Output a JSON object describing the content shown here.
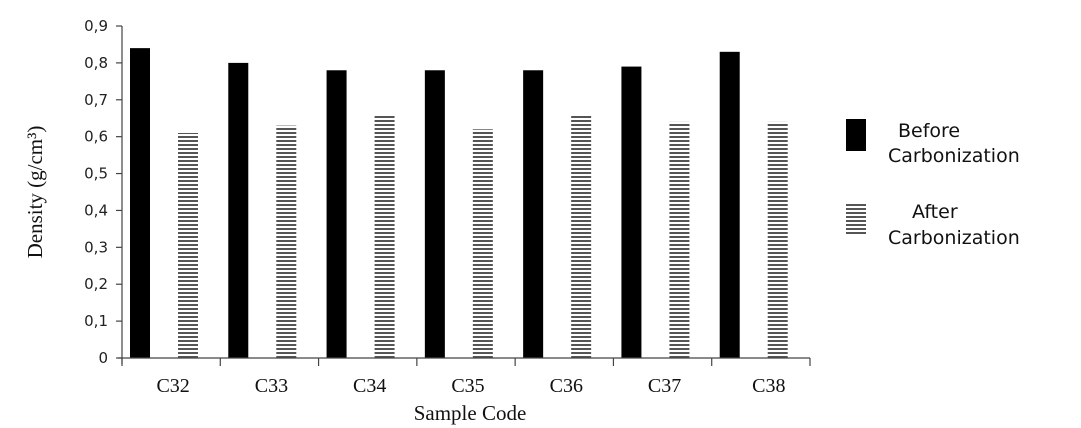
{
  "chart_data": {
    "type": "bar",
    "title": "",
    "xlabel": "Sample Code",
    "ylabel": "Density (g/cm³)",
    "ylim": [
      0,
      0.9
    ],
    "yticks": [
      "0",
      "0,1",
      "0,2",
      "0,3",
      "0,4",
      "0,5",
      "0,6",
      "0,7",
      "0,8",
      "0,9"
    ],
    "categories": [
      "C32",
      "C33",
      "C34",
      "C35",
      "C36",
      "C37",
      "C38"
    ],
    "series": [
      {
        "name": "Before Carbonization",
        "legend_lines": [
          "Before",
          "Carbonization"
        ],
        "color": "#000000",
        "fill": "solid",
        "values": [
          0.84,
          0.8,
          0.78,
          0.78,
          0.78,
          0.79,
          0.83
        ]
      },
      {
        "name": "After Carbonization",
        "legend_lines": [
          "After",
          "Carbonization"
        ],
        "color": "#555555",
        "fill": "horizontal-stripes",
        "values": [
          0.61,
          0.63,
          0.66,
          0.62,
          0.66,
          0.64,
          0.64
        ]
      }
    ],
    "grid": false,
    "legend_position": "right"
  }
}
